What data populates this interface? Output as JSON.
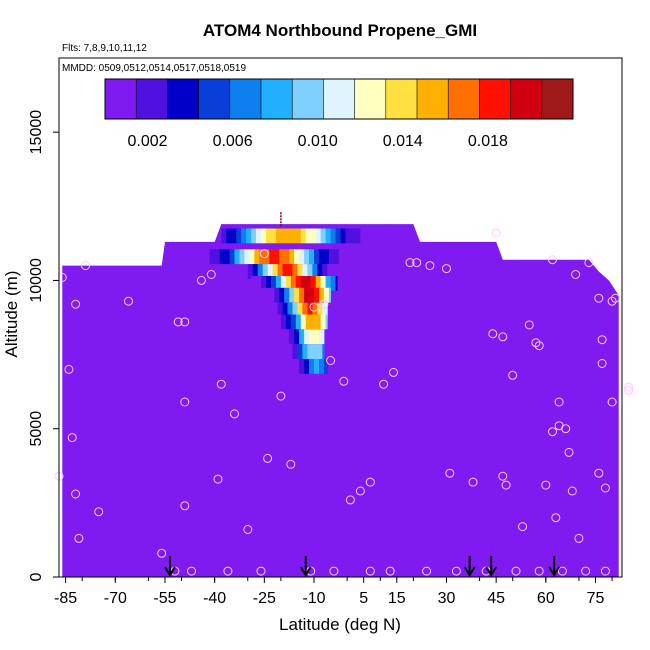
{
  "chart_data": {
    "type": "heatmap",
    "title": "ATOM4 Northbound Propene_GMI",
    "subtitle_flights": "Flts: 7,8,9,10,11,12",
    "subtitle_dates": "MMDD: 0509,0512,0514,0517,0518,0519",
    "xlabel": "Latitude (deg N)",
    "ylabel": "Altitude (m)",
    "xlim": [
      -87,
      83
    ],
    "ylim": [
      0,
      17500
    ],
    "x_ticks": [
      -85,
      -70,
      -55,
      -40,
      -25,
      -10,
      5,
      15,
      30,
      45,
      60,
      75
    ],
    "y_ticks": [
      0,
      5000,
      10000,
      15000
    ],
    "colorbar": {
      "range": [
        0,
        0.022
      ],
      "tick_values": [
        0.002,
        0.006,
        0.01,
        0.014,
        0.018
      ],
      "tick_labels": [
        "0.002",
        "0.006",
        "0.010",
        "0.014",
        "0.018"
      ],
      "colors": [
        "#7f1bf0",
        "#5010e0",
        "#0000c8",
        "#0a3ed8",
        "#0f7ff0",
        "#20b0ff",
        "#80d0ff",
        "#e0f4ff",
        "#ffffc0",
        "#ffe040",
        "#ffb000",
        "#ff7000",
        "#ff1000",
        "#d00010",
        "#a01818"
      ]
    },
    "background_value_color": "#7f1bf0",
    "domain_outline_lat_alt": [
      [
        -86,
        0
      ],
      [
        -86,
        10500
      ],
      [
        -56,
        10500
      ],
      [
        -55,
        11300
      ],
      [
        -40,
        11300
      ],
      [
        -38,
        11900
      ],
      [
        20,
        11900
      ],
      [
        22,
        11300
      ],
      [
        45,
        11300
      ],
      [
        47,
        10700
      ],
      [
        73,
        10700
      ],
      [
        76,
        10300
      ],
      [
        79,
        10000
      ],
      [
        82,
        9500
      ],
      [
        82,
        0
      ]
    ],
    "plume_slices": [
      {
        "alt": 11500,
        "lat_range": [
          -38,
          20
        ],
        "peak_lat": -18,
        "peak": 0.016,
        "width": 14
      },
      {
        "alt": 10800,
        "lat_range": [
          -55,
          21
        ],
        "peak_lat": -22,
        "peak": 0.018,
        "width": 12
      },
      {
        "alt": 10300,
        "lat_range": [
          -30,
          -3
        ],
        "peak_lat": -18,
        "peak": 0.018,
        "width": 8
      },
      {
        "alt": 9900,
        "lat_range": [
          -29,
          -3
        ],
        "peak_lat": -13,
        "peak": 0.02,
        "width": 8
      },
      {
        "alt": 9500,
        "lat_range": [
          -28,
          -5
        ],
        "peak_lat": -11,
        "peak": 0.02,
        "width": 7
      },
      {
        "alt": 9000,
        "lat_range": [
          -27,
          -6
        ],
        "peak_lat": -11,
        "peak": 0.018,
        "width": 6
      },
      {
        "alt": 8600,
        "lat_range": [
          -26,
          -6
        ],
        "peak_lat": -10,
        "peak": 0.016,
        "width": 6
      },
      {
        "alt": 8100,
        "lat_range": [
          -25,
          -7
        ],
        "peak_lat": -10,
        "peak": 0.013,
        "width": 5
      },
      {
        "alt": 7600,
        "lat_range": [
          -24,
          -7
        ],
        "peak_lat": -10,
        "peak": 0.01,
        "width": 5
      },
      {
        "alt": 7100,
        "lat_range": [
          -16,
          -6
        ],
        "peak_lat": -9,
        "peak": 0.008,
        "width": 4
      }
    ],
    "observation_points": [
      [
        -86,
        10100
      ],
      [
        -82,
        9200
      ],
      [
        -79,
        10500
      ],
      [
        -84,
        7000
      ],
      [
        -83,
        4700
      ],
      [
        -82,
        2800
      ],
      [
        -87,
        3400
      ],
      [
        -81,
        1300
      ],
      [
        -56,
        800
      ],
      [
        -51,
        8600
      ],
      [
        -49,
        8600
      ],
      [
        -49,
        5900
      ],
      [
        -49,
        2400
      ],
      [
        -44,
        10000
      ],
      [
        -41,
        10200
      ],
      [
        -38,
        6500
      ],
      [
        -39,
        3300
      ],
      [
        -34,
        5500
      ],
      [
        -30,
        1600
      ],
      [
        -25,
        10900
      ],
      [
        -24,
        4000
      ],
      [
        -20,
        6100
      ],
      [
        -17,
        3800
      ],
      [
        -10,
        9100
      ],
      [
        -7,
        9200
      ],
      [
        -5,
        7300
      ],
      [
        -1,
        6600
      ],
      [
        1,
        2600
      ],
      [
        4,
        2900
      ],
      [
        7,
        3200
      ],
      [
        14,
        6900
      ],
      [
        11,
        6500
      ],
      [
        21,
        10600
      ],
      [
        25,
        10500
      ],
      [
        19,
        10600
      ],
      [
        30,
        10400
      ],
      [
        31,
        3500
      ],
      [
        38,
        3200
      ],
      [
        45,
        11600
      ],
      [
        44,
        8200
      ],
      [
        47,
        8100
      ],
      [
        47,
        3400
      ],
      [
        48,
        3100
      ],
      [
        50,
        6800
      ],
      [
        53,
        1700
      ],
      [
        55,
        8500
      ],
      [
        57,
        7900
      ],
      [
        58,
        7800
      ],
      [
        62,
        10700
      ],
      [
        62,
        4900
      ],
      [
        60,
        3100
      ],
      [
        63,
        2000
      ],
      [
        64,
        5100
      ],
      [
        64,
        5900
      ],
      [
        66,
        5000
      ],
      [
        67,
        4200
      ],
      [
        68,
        2900
      ],
      [
        70,
        1300
      ],
      [
        69,
        10200
      ],
      [
        73,
        10600
      ],
      [
        76,
        9400
      ],
      [
        77,
        8000
      ],
      [
        80,
        9300
      ],
      [
        81,
        9400
      ],
      [
        77,
        7200
      ],
      [
        76,
        3500
      ],
      [
        78,
        3000
      ],
      [
        80,
        5900
      ],
      [
        85,
        6400
      ],
      [
        85,
        6300
      ],
      [
        -52,
        200
      ],
      [
        -47,
        200
      ],
      [
        -36,
        200
      ],
      [
        -26,
        200
      ],
      [
        -11,
        200
      ],
      [
        -4,
        200
      ],
      [
        7,
        200
      ],
      [
        13,
        200
      ],
      [
        24,
        200
      ],
      [
        33,
        200
      ],
      [
        42,
        200
      ],
      [
        51,
        200
      ],
      [
        58,
        200
      ],
      [
        65,
        200
      ],
      [
        72,
        200
      ],
      [
        78,
        200
      ],
      [
        -75,
        2200
      ],
      [
        -66,
        9300
      ]
    ],
    "arrows_lat": [
      -53.5,
      -12.5,
      37,
      43.5,
      62.5
    ],
    "tropopause_marker": {
      "lat": -20,
      "alt_top": 12300,
      "alt_bottom": 11800
    }
  }
}
